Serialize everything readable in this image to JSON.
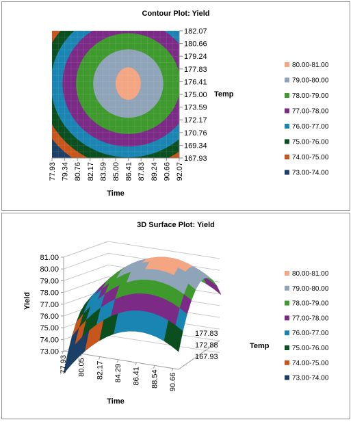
{
  "legend_colors": {
    "80.00-81.00": "#f4a582",
    "79.00-80.00": "#8fa4b8",
    "78.00-79.00": "#3f9a2e",
    "77.00-78.00": "#7b2a86",
    "76.00-77.00": "#1a85b3",
    "75.00-76.00": "#0b4f1f",
    "74.00-75.00": "#c8561c",
    "73.00-74.00": "#1b3f66"
  },
  "chart_data": [
    {
      "type": "heatmap",
      "subtype": "contour",
      "title": "Contour Plot: Yield",
      "xlabel": "Time",
      "ylabel": "Temp",
      "x_ticks": [
        "77.93",
        "79.34",
        "80.76",
        "82.17",
        "83.59",
        "85.00",
        "86.41",
        "87.83",
        "89.24",
        "90.66",
        "92.07"
      ],
      "y_ticks": [
        "182.07",
        "180.66",
        "179.24",
        "177.83",
        "176.41",
        "175.00",
        "173.59",
        "172.17",
        "170.76",
        "169.34",
        "167.93"
      ],
      "xlim": [
        77.93,
        92.07
      ],
      "ylim": [
        167.93,
        182.07
      ],
      "levels": [
        "80.00-81.00",
        "79.00-80.00",
        "78.00-79.00",
        "77.00-78.00",
        "76.00-77.00",
        "75.00-76.00",
        "74.00-75.00",
        "73.00-74.00"
      ],
      "peak": {
        "time": 86.4,
        "temp": 176.2,
        "yield": 80.4
      },
      "legend_position": "right"
    },
    {
      "type": "heatmap",
      "subtype": "3d-surface",
      "title": "3D Surface Plot: Yield",
      "xlabel": "Time",
      "ylabel": "Temp",
      "zlabel": "Yield",
      "x_ticks": [
        "77.93",
        "80.05",
        "82.17",
        "84.29",
        "86.41",
        "88.54",
        "90.66"
      ],
      "y_ticks": [
        "167.93",
        "172.88",
        "177.83"
      ],
      "z_ticks": [
        "81.00",
        "80.00",
        "79.00",
        "78.00",
        "77.00",
        "76.00",
        "75.00",
        "74.00",
        "73.00"
      ],
      "zlim": [
        73,
        81
      ],
      "levels": [
        "80.00-81.00",
        "79.00-80.00",
        "78.00-79.00",
        "77.00-78.00",
        "76.00-77.00",
        "75.00-76.00",
        "74.00-75.00",
        "73.00-74.00"
      ],
      "legend_position": "right"
    }
  ]
}
